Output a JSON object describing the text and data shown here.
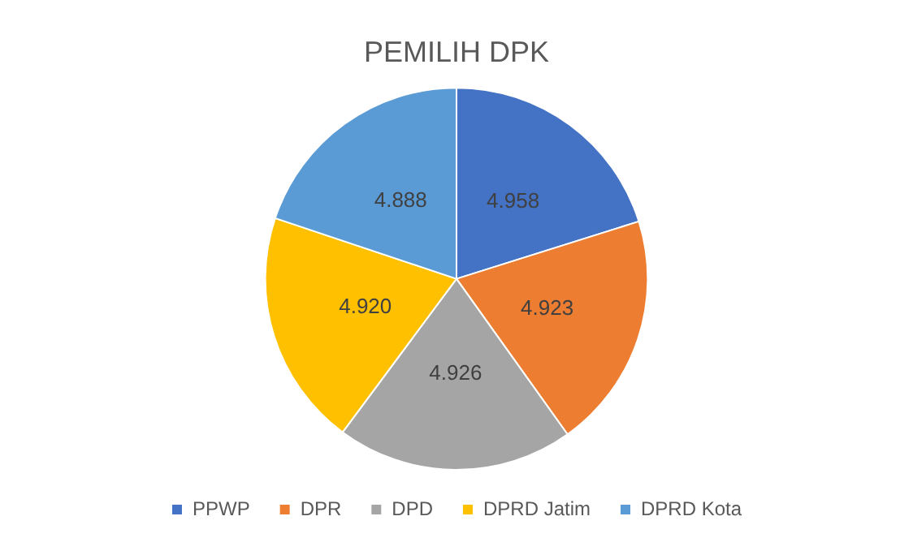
{
  "chart_data": {
    "type": "pie",
    "title": "PEMILIH DPK",
    "categories": [
      "PPWP",
      "DPR",
      "DPD",
      "DPRD Jatim",
      "DPRD Kota"
    ],
    "values": [
      4.958,
      4.923,
      4.926,
      4.92,
      4.888
    ],
    "value_labels": [
      "4.958",
      "4.923",
      "4.926",
      "4.920",
      "4.888"
    ],
    "colors": [
      "#4472c4",
      "#ed7d31",
      "#a5a5a5",
      "#ffc000",
      "#5b9bd5"
    ],
    "legend": "bottom"
  }
}
